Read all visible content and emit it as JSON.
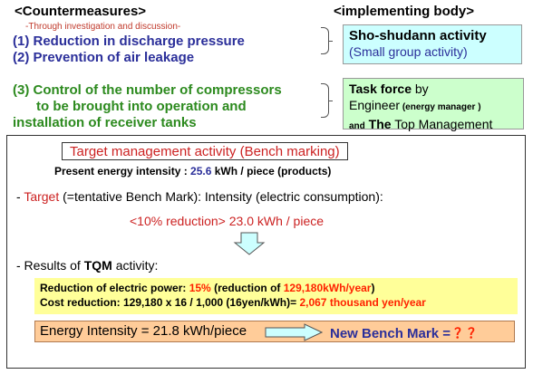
{
  "header": {
    "countermeasures": "<Countermeasures>",
    "implementing_body": "<implementing body>"
  },
  "note": "-Through investigation and discussion-",
  "countermeasures": {
    "item1": "(1) Reduction in discharge pressure",
    "item2": "(2) Prevention of air leakage",
    "item3_line1": "(3) Control of the number of compressors",
    "item3_line2": "to be brought into operation and",
    "item3_line3": "installation of receiver tanks"
  },
  "sho_box": {
    "title": "Sho-shudann activity",
    "subtitle": "(Small group activity)"
  },
  "task_force": {
    "title": "Task force",
    "by": " by",
    "engineer": "Engineer",
    "energy_manager": " (energy manager )",
    "and": "and",
    "the": " The",
    "top_management": " Top Management"
  },
  "target_mgmt": "Target management activity  (Bench marking)",
  "present": {
    "label": "Present energy intensity : ",
    "value": "25.6",
    "unit": " kWh / piece (products)"
  },
  "target": {
    "dash": "-  ",
    "label": "Target",
    "rest": " (=tentative Bench Mark): Intensity (electric consumption):"
  },
  "reduction": "<10% reduction>   23.0 kWh / piece",
  "results": {
    "prefix": "-  Results of ",
    "tqm": "TQM",
    "suffix": " activity:"
  },
  "yellow": {
    "r1_label": "Reduction of electric power: ",
    "r1_pct": "15%",
    "r1_mid": "  (reduction of ",
    "r1_val": "129,180kWh/year",
    "r1_end": ")",
    "r2_label": "Cost reduction: 129,180 x 16 / 1,000 (16yen/kWh)= ",
    "r2_val": "2,067 thousand yen/year"
  },
  "bottom": {
    "energy_intensity": "Energy Intensity = 21.8 kWh/piece",
    "new_bm": "New Bench Mark = ",
    "qmarks": "？？"
  },
  "colors": {
    "blue_text": "#2b2f9a",
    "green_text": "#2c8a1e",
    "red_text": "#cc2222",
    "sho_bg": "#ccffff",
    "taskforce_bg": "#ccffcc",
    "yellow_bg": "#ffff99",
    "orange_bg": "#ffcc99",
    "arrow_fill": "#ccffff"
  },
  "icons": {
    "down_arrow": "down-arrow-icon",
    "right_arrow": "right-arrow-icon"
  }
}
